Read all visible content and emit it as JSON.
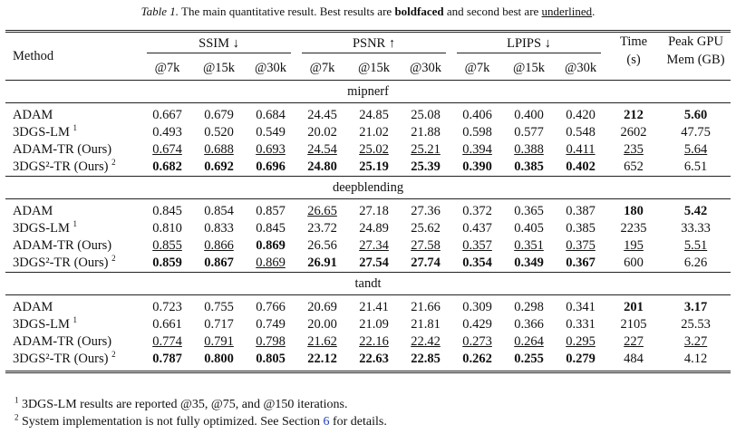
{
  "caption": {
    "label": "Table 1.",
    "parts": [
      "The main quantitative result. Best results are ",
      "boldfaced",
      " and second best are ",
      "underlined",
      "."
    ]
  },
  "header": {
    "method": "Method",
    "groups": [
      "SSIM ↓",
      "PSNR ↑",
      "LPIPS ↓"
    ],
    "subs": [
      "@7k",
      "@15k",
      "@30k",
      "@7k",
      "@15k",
      "@30k",
      "@7k",
      "@15k",
      "@30k"
    ],
    "time": [
      "Time",
      "(s)"
    ],
    "mem": [
      "Peak GPU",
      "Mem (GB)"
    ]
  },
  "sections": [
    {
      "name": "mipnerf",
      "rows": [
        {
          "method": "ADAM",
          "cells": [
            "0.667",
            "0.679",
            "0.684",
            "24.45",
            "24.85",
            "25.08",
            "0.406",
            "0.400",
            "0.420",
            "212",
            "5.60"
          ],
          "bold": [
            9,
            10
          ],
          "underline": []
        },
        {
          "method": "3DGS-LM",
          "note": "1",
          "cells": [
            "0.493",
            "0.520",
            "0.549",
            "20.02",
            "21.02",
            "21.88",
            "0.598",
            "0.577",
            "0.548",
            "2602",
            "47.75"
          ],
          "bold": [],
          "underline": []
        },
        {
          "method": "ADAM-TR (Ours)",
          "cells": [
            "0.674",
            "0.688",
            "0.693",
            "24.54",
            "25.02",
            "25.21",
            "0.394",
            "0.388",
            "0.411",
            "235",
            "5.64"
          ],
          "bold": [],
          "underline": [
            0,
            1,
            2,
            3,
            4,
            5,
            6,
            7,
            8,
            9,
            10
          ]
        },
        {
          "method": "3DGS²-TR (Ours)",
          "note": "2",
          "cells": [
            "0.682",
            "0.692",
            "0.696",
            "24.80",
            "25.19",
            "25.39",
            "0.390",
            "0.385",
            "0.402",
            "652",
            "6.51"
          ],
          "bold": [
            0,
            1,
            2,
            3,
            4,
            5,
            6,
            7,
            8
          ],
          "underline": []
        }
      ]
    },
    {
      "name": "deepblending",
      "rows": [
        {
          "method": "ADAM",
          "cells": [
            "0.845",
            "0.854",
            "0.857",
            "26.65",
            "27.18",
            "27.36",
            "0.372",
            "0.365",
            "0.387",
            "180",
            "5.42"
          ],
          "bold": [
            9,
            10
          ],
          "underline": [
            3
          ]
        },
        {
          "method": "3DGS-LM",
          "note": "1",
          "cells": [
            "0.810",
            "0.833",
            "0.845",
            "23.72",
            "24.89",
            "25.62",
            "0.437",
            "0.405",
            "0.385",
            "2235",
            "33.33"
          ],
          "bold": [],
          "underline": []
        },
        {
          "method": "ADAM-TR (Ours)",
          "cells": [
            "0.855",
            "0.866",
            "0.869",
            "26.56",
            "27.34",
            "27.58",
            "0.357",
            "0.351",
            "0.375",
            "195",
            "5.51"
          ],
          "bold": [
            2
          ],
          "underline": [
            0,
            1,
            4,
            5,
            6,
            7,
            8,
            9,
            10
          ]
        },
        {
          "method": "3DGS²-TR (Ours)",
          "note": "2",
          "cells": [
            "0.859",
            "0.867",
            "0.869",
            "26.91",
            "27.54",
            "27.74",
            "0.354",
            "0.349",
            "0.367",
            "600",
            "6.26"
          ],
          "bold": [
            0,
            1,
            3,
            4,
            5,
            6,
            7,
            8
          ],
          "underline": [
            2
          ]
        }
      ]
    },
    {
      "name": "tandt",
      "rows": [
        {
          "method": "ADAM",
          "cells": [
            "0.723",
            "0.755",
            "0.766",
            "20.69",
            "21.41",
            "21.66",
            "0.309",
            "0.298",
            "0.341",
            "201",
            "3.17"
          ],
          "bold": [
            9,
            10
          ],
          "underline": []
        },
        {
          "method": "3DGS-LM",
          "note": "1",
          "cells": [
            "0.661",
            "0.717",
            "0.749",
            "20.00",
            "21.09",
            "21.81",
            "0.429",
            "0.366",
            "0.331",
            "2105",
            "25.53"
          ],
          "bold": [],
          "underline": []
        },
        {
          "method": "ADAM-TR (Ours)",
          "cells": [
            "0.774",
            "0.791",
            "0.798",
            "21.62",
            "22.16",
            "22.42",
            "0.273",
            "0.264",
            "0.295",
            "227",
            "3.27"
          ],
          "bold": [],
          "underline": [
            0,
            1,
            2,
            3,
            4,
            5,
            6,
            7,
            8,
            9,
            10
          ]
        },
        {
          "method": "3DGS²-TR (Ours)",
          "note": "2",
          "cells": [
            "0.787",
            "0.800",
            "0.805",
            "22.12",
            "22.63",
            "22.85",
            "0.262",
            "0.255",
            "0.279",
            "484",
            "4.12"
          ],
          "bold": [
            0,
            1,
            2,
            3,
            4,
            5,
            6,
            7,
            8
          ],
          "underline": []
        }
      ]
    }
  ],
  "footnotes": [
    {
      "mark": "1",
      "parts": [
        "3DGS-LM results are reported @35, @75, and @150 iterations."
      ]
    },
    {
      "mark": "2",
      "parts": [
        "System implementation is not fully optimized. See Section ",
        "6",
        " for details."
      ]
    }
  ]
}
